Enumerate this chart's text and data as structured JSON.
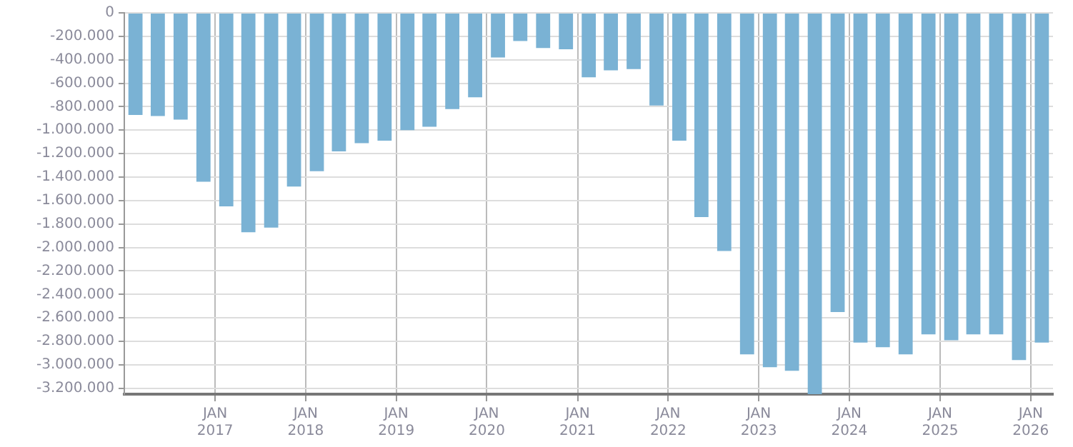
{
  "chart_data": {
    "type": "bar",
    "color": "#7ab2d4",
    "x": [
      "2016-02-15",
      "2016-05-15",
      "2016-08-15",
      "2016-11-15",
      "2017-02-15",
      "2017-05-15",
      "2017-08-15",
      "2017-11-15",
      "2018-02-15",
      "2018-05-15",
      "2018-08-15",
      "2018-11-15",
      "2019-02-15",
      "2019-05-15",
      "2019-08-15",
      "2019-11-15",
      "2020-02-15",
      "2020-05-15",
      "2020-08-15",
      "2020-11-15",
      "2021-02-15",
      "2021-05-15",
      "2021-08-15",
      "2021-11-15",
      "2022-02-15",
      "2022-05-15",
      "2022-08-15",
      "2022-11-15",
      "2023-02-15",
      "2023-05-15",
      "2023-08-15",
      "2023-11-15",
      "2024-02-15",
      "2024-05-15",
      "2024-08-15",
      "2024-11-15",
      "2025-02-15",
      "2025-05-15",
      "2025-08-15",
      "2025-11-15",
      "2026-02-15"
    ],
    "values": [
      -870000,
      -880000,
      -910000,
      -1440000,
      -1650000,
      -1870000,
      -1830000,
      -1480000,
      -1350000,
      -1180000,
      -1110000,
      -1090000,
      -1000000,
      -970000,
      -820000,
      -720000,
      -380000,
      -240000,
      -300000,
      -310000,
      -550000,
      -490000,
      -480000,
      -790000,
      -1090000,
      -1740000,
      -2030000,
      -2910000,
      -3020000,
      -3050000,
      -3250000,
      -2550000,
      -2810000,
      -2850000,
      -2910000,
      -2740000,
      -2790000,
      -2740000,
      -2740000,
      -2960000,
      -2810000
    ],
    "xlim": [
      "2016-01-01",
      "2026-04-01"
    ],
    "xticks": [
      {
        "value": "2017-01-01",
        "label": "JAN\n2017"
      },
      {
        "value": "2018-01-01",
        "label": "JAN\n2018"
      },
      {
        "value": "2019-01-01",
        "label": "JAN\n2019"
      },
      {
        "value": "2020-01-01",
        "label": "JAN\n2020"
      },
      {
        "value": "2021-01-01",
        "label": "JAN\n2021"
      },
      {
        "value": "2022-01-01",
        "label": "JAN\n2022"
      },
      {
        "value": "2023-01-01",
        "label": "JAN\n2023"
      },
      {
        "value": "2024-01-01",
        "label": "JAN\n2024"
      },
      {
        "value": "2025-01-01",
        "label": "JAN\n2025"
      },
      {
        "value": "2026-01-01",
        "label": "JAN\n2026"
      }
    ],
    "ylim": [
      -3250000,
      0
    ],
    "yticks": [
      0,
      {
        "value": -200000,
        "label": "-200.000"
      },
      {
        "value": -400000,
        "label": "-400.000"
      },
      {
        "value": -600000,
        "label": "-600.000"
      },
      {
        "value": -800000,
        "label": "-800.000"
      },
      {
        "value": -1000000,
        "label": "-1.000.000"
      },
      {
        "value": -1200000,
        "label": "-1.200.000"
      },
      {
        "value": -1400000,
        "label": "-1.400.000"
      },
      {
        "value": -1600000,
        "label": "-1.600.000"
      },
      {
        "value": -1800000,
        "label": "-1.800.000"
      },
      {
        "value": -2000000,
        "label": "-2.000.000"
      },
      {
        "value": -2200000,
        "label": "-2.200.000"
      },
      {
        "value": -2400000,
        "label": "-2.400.000"
      },
      {
        "value": -2600000,
        "label": "-2.600.000"
      },
      {
        "value": -2800000,
        "label": "-2.800.000"
      },
      {
        "value": -3000000,
        "label": "-3.000.000"
      },
      {
        "value": -3200000,
        "label": "-3.200.000"
      }
    ],
    "grid": true,
    "legend": false
  }
}
